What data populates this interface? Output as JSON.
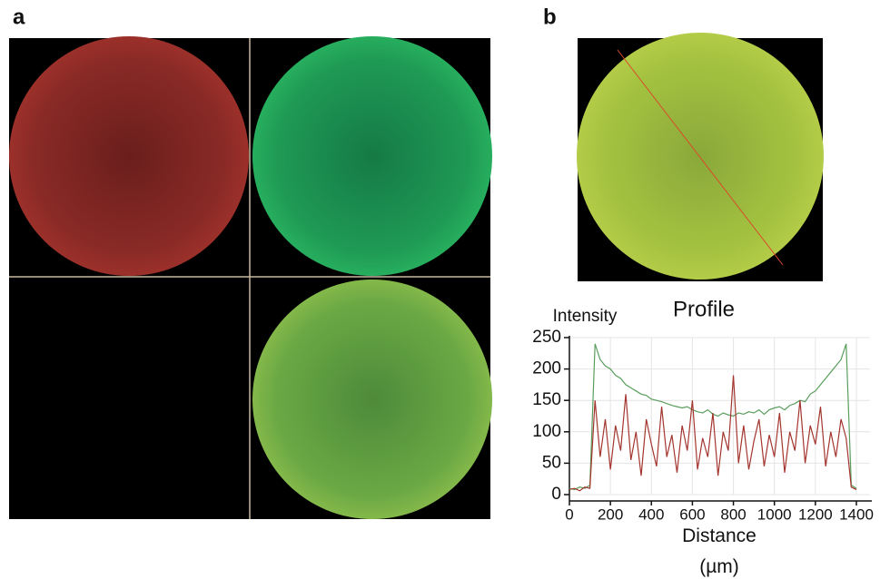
{
  "panel_a_label": "a",
  "panel_b_label": "b",
  "chart_data": {
    "type": "line",
    "title": "Profile",
    "y_label": "Intensity",
    "x_label": "Distance (µm)",
    "x": [
      0,
      25,
      50,
      75,
      100,
      125,
      150,
      175,
      200,
      225,
      250,
      275,
      300,
      325,
      350,
      375,
      400,
      425,
      450,
      475,
      500,
      525,
      550,
      575,
      600,
      625,
      650,
      675,
      700,
      725,
      750,
      775,
      800,
      825,
      850,
      875,
      900,
      925,
      950,
      975,
      1000,
      1025,
      1050,
      1075,
      1100,
      1125,
      1150,
      1175,
      1200,
      1225,
      1250,
      1275,
      1300,
      1325,
      1350,
      1375,
      1400
    ],
    "series": [
      {
        "color": "#5a9e5e",
        "values": [
          10,
          8,
          12,
          10,
          15,
          240,
          215,
          205,
          200,
          190,
          185,
          175,
          170,
          165,
          160,
          158,
          152,
          150,
          148,
          145,
          142,
          140,
          138,
          140,
          135,
          132,
          130,
          135,
          128,
          125,
          130,
          127,
          125,
          130,
          128,
          132,
          130,
          135,
          128,
          135,
          138,
          140,
          135,
          142,
          145,
          150,
          148,
          160,
          165,
          175,
          185,
          195,
          205,
          215,
          240,
          15,
          10
        ]
      },
      {
        "color": "#a3352e",
        "values": [
          8,
          10,
          6,
          12,
          10,
          150,
          60,
          120,
          40,
          110,
          70,
          160,
          55,
          100,
          30,
          120,
          80,
          45,
          140,
          60,
          95,
          35,
          110,
          70,
          150,
          40,
          90,
          60,
          130,
          30,
          100,
          70,
          190,
          50,
          110,
          40,
          85,
          120,
          45,
          95,
          60,
          130,
          35,
          100,
          70,
          150,
          50,
          110,
          80,
          140,
          45,
          100,
          60,
          120,
          90,
          12,
          8
        ]
      }
    ],
    "xlim": [
      0,
      1400
    ],
    "ylim": [
      0,
      250
    ],
    "xticks": [
      0,
      200,
      400,
      600,
      800,
      1000,
      1200,
      1400
    ],
    "yticks": [
      0,
      50,
      100,
      150,
      200,
      250
    ],
    "grid": true
  }
}
